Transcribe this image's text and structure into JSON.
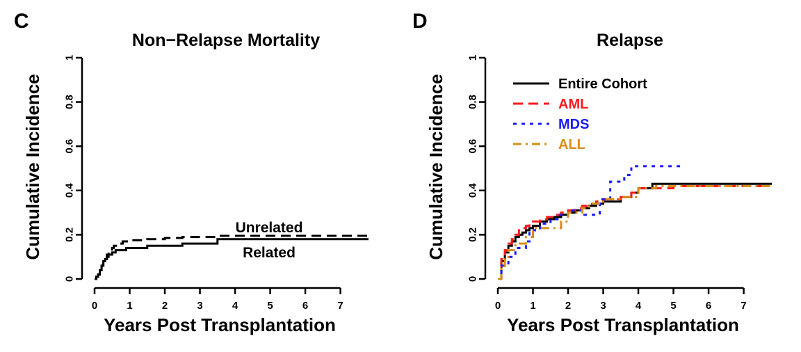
{
  "figure": {
    "panels": [
      {
        "letter": "C",
        "title": "Non−Relapse Mortality",
        "annotations": [
          "Unrelated",
          "Related"
        ]
      },
      {
        "letter": "D",
        "title": "Relapse",
        "legend": [
          "Entire Cohort",
          "AML",
          "MDS",
          "ALL"
        ]
      }
    ]
  },
  "chart_data": [
    {
      "type": "line",
      "step": true,
      "title": "Non−Relapse Mortality",
      "xlabel": "Years Post Transplantation",
      "ylabel": "Cumulative Incidence",
      "xlim": [
        0,
        7.8
      ],
      "ylim": [
        0,
        1
      ],
      "xticks": [
        0,
        1,
        2,
        3,
        4,
        5,
        6,
        7
      ],
      "yticks": [
        0,
        0.2,
        0.4,
        0.6,
        0.8,
        1
      ],
      "ytick_labels": [
        "0",
        "0.2",
        "0.4",
        "0.6",
        "0.8",
        "1"
      ],
      "grid": false,
      "series": [
        {
          "name": "Unrelated",
          "color": "#000000",
          "dash": "dashed",
          "x": [
            0,
            0.05,
            0.1,
            0.15,
            0.2,
            0.25,
            0.3,
            0.35,
            0.4,
            0.5,
            0.55,
            0.65,
            0.8,
            0.9,
            1.0,
            1.5,
            2.0,
            2.5,
            3.0,
            3.5,
            4.0,
            5.0,
            6.0,
            7.0,
            7.8
          ],
          "y": [
            0,
            0.01,
            0.02,
            0.04,
            0.06,
            0.08,
            0.09,
            0.11,
            0.12,
            0.14,
            0.15,
            0.16,
            0.17,
            0.17,
            0.175,
            0.18,
            0.185,
            0.19,
            0.19,
            0.195,
            0.195,
            0.195,
            0.195,
            0.195,
            0.195
          ]
        },
        {
          "name": "Related",
          "color": "#000000",
          "dash": "solid",
          "x": [
            0,
            0.05,
            0.1,
            0.15,
            0.2,
            0.25,
            0.3,
            0.35,
            0.4,
            0.5,
            0.6,
            0.7,
            0.9,
            1.0,
            1.5,
            2.0,
            2.5,
            3.0,
            3.4,
            3.5,
            4.0,
            5.0,
            6.0,
            7.0,
            7.8
          ],
          "y": [
            0,
            0.01,
            0.02,
            0.04,
            0.06,
            0.08,
            0.09,
            0.1,
            0.11,
            0.12,
            0.13,
            0.13,
            0.14,
            0.14,
            0.15,
            0.15,
            0.16,
            0.16,
            0.16,
            0.18,
            0.18,
            0.18,
            0.18,
            0.18,
            0.18
          ]
        }
      ]
    },
    {
      "type": "line",
      "step": true,
      "title": "Relapse",
      "xlabel": "Years Post Transplantation",
      "ylabel": "Cumulative Incidence",
      "xlim": [
        0,
        7.8
      ],
      "ylim": [
        0,
        1
      ],
      "xticks": [
        0,
        1,
        2,
        3,
        4,
        5,
        6,
        7
      ],
      "yticks": [
        0,
        0.2,
        0.4,
        0.6,
        0.8,
        1
      ],
      "ytick_labels": [
        "0",
        "0.2",
        "0.4",
        "0.6",
        "0.8",
        "1"
      ],
      "grid": false,
      "legend_position": "top-left",
      "series": [
        {
          "name": "Entire Cohort",
          "color": "#000000",
          "dash": "solid",
          "x": [
            0,
            0.1,
            0.2,
            0.3,
            0.4,
            0.5,
            0.6,
            0.7,
            0.8,
            0.9,
            1.0,
            1.2,
            1.4,
            1.6,
            1.8,
            2.0,
            2.2,
            2.4,
            2.6,
            2.8,
            3.0,
            3.5,
            3.8,
            4.0,
            4.4,
            5.0,
            6.0,
            7.0,
            7.8
          ],
          "y": [
            0,
            0.08,
            0.12,
            0.15,
            0.17,
            0.19,
            0.2,
            0.21,
            0.22,
            0.23,
            0.24,
            0.26,
            0.27,
            0.28,
            0.29,
            0.3,
            0.31,
            0.32,
            0.33,
            0.34,
            0.35,
            0.37,
            0.39,
            0.41,
            0.43,
            0.43,
            0.43,
            0.43,
            0.43
          ]
        },
        {
          "name": "AML",
          "color": "#ff1a1a",
          "dash": "dashed",
          "x": [
            0,
            0.1,
            0.2,
            0.3,
            0.4,
            0.5,
            0.6,
            0.7,
            0.8,
            0.9,
            1.0,
            1.2,
            1.4,
            1.6,
            1.8,
            2.0,
            2.2,
            2.4,
            2.6,
            2.8,
            3.0,
            3.5,
            3.8,
            4.0,
            5.0,
            6.0,
            7.0,
            7.8
          ],
          "y": [
            0,
            0.09,
            0.13,
            0.16,
            0.18,
            0.2,
            0.22,
            0.23,
            0.24,
            0.25,
            0.26,
            0.27,
            0.28,
            0.29,
            0.3,
            0.31,
            0.32,
            0.33,
            0.34,
            0.35,
            0.36,
            0.37,
            0.39,
            0.41,
            0.42,
            0.42,
            0.42,
            0.42
          ]
        },
        {
          "name": "MDS",
          "color": "#1a1aff",
          "dash": "dotted",
          "x": [
            0,
            0.1,
            0.3,
            0.5,
            0.8,
            0.9,
            1.2,
            1.5,
            1.7,
            2.0,
            2.4,
            2.6,
            2.9,
            3.2,
            3.4,
            3.6,
            3.8,
            4.0,
            4.5,
            5.0,
            5.2
          ],
          "y": [
            0,
            0.06,
            0.1,
            0.14,
            0.17,
            0.22,
            0.25,
            0.27,
            0.29,
            0.31,
            0.29,
            0.29,
            0.36,
            0.44,
            0.44,
            0.47,
            0.51,
            0.51,
            0.51,
            0.51,
            0.51
          ]
        },
        {
          "name": "ALL",
          "color": "#d98c1a",
          "dash": "dashdot",
          "x": [
            0,
            0.1,
            0.2,
            0.3,
            0.5,
            0.8,
            1.0,
            1.5,
            1.8,
            2.0,
            2.4,
            2.6,
            3.0,
            3.5,
            4.0,
            4.5,
            5.0,
            6.0,
            7.0,
            7.8
          ],
          "y": [
            0,
            0.05,
            0.09,
            0.13,
            0.16,
            0.19,
            0.23,
            0.23,
            0.26,
            0.3,
            0.32,
            0.34,
            0.36,
            0.37,
            0.41,
            0.42,
            0.42,
            0.42,
            0.42,
            0.42
          ]
        }
      ]
    }
  ]
}
